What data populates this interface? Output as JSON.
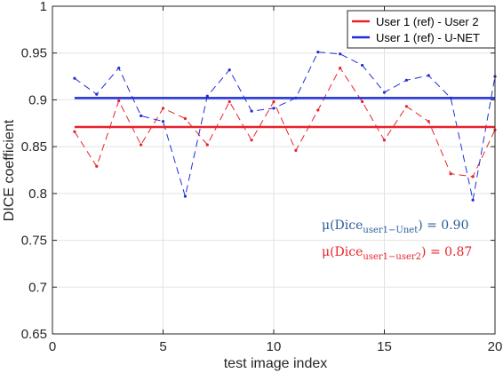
{
  "chart_data": {
    "type": "line",
    "xlabel": "test image index",
    "ylabel": "DICE coefficient",
    "xlim": [
      0,
      20
    ],
    "ylim": [
      0.65,
      1
    ],
    "xticks": [
      "0",
      "5",
      "10",
      "15",
      "20"
    ],
    "xtick_values": [
      0,
      5,
      10,
      15,
      20
    ],
    "yticks": [
      "0.65",
      "0.7",
      "0.75",
      "0.8",
      "0.85",
      "0.9",
      "0.95",
      "1"
    ],
    "ytick_values": [
      0.65,
      0.7,
      0.75,
      0.8,
      0.85,
      0.9,
      0.95,
      1
    ],
    "grid": true,
    "legend_position": "top-right",
    "legend": [
      {
        "label": "User 1 (ref) - User 2",
        "color": "#e8222a"
      },
      {
        "label": "User 1 (ref) - U-NET",
        "color": "#1f2fd6"
      }
    ],
    "x": [
      1,
      2,
      3,
      4,
      5,
      6,
      7,
      8,
      9,
      10,
      11,
      12,
      13,
      14,
      15,
      16,
      17,
      18,
      19,
      20
    ],
    "series": [
      {
        "name": "User 1 (ref) - User 2",
        "color": "#e8222a",
        "values": [
          0.866,
          0.829,
          0.899,
          0.852,
          0.891,
          0.88,
          0.852,
          0.898,
          0.857,
          0.898,
          0.846,
          0.889,
          0.934,
          0.898,
          0.857,
          0.893,
          0.877,
          0.821,
          0.818,
          0.868
        ],
        "mean": 0.871
      },
      {
        "name": "User 1 (ref) - U-NET",
        "color": "#1f2fd6",
        "values": [
          0.923,
          0.906,
          0.934,
          0.883,
          0.877,
          0.797,
          0.904,
          0.932,
          0.888,
          0.891,
          0.902,
          0.951,
          0.949,
          0.937,
          0.908,
          0.921,
          0.926,
          0.902,
          0.793,
          0.925
        ],
        "mean": 0.902
      }
    ],
    "annotations": [
      {
        "prefix": "μ(Dice",
        "subscript": "user1−Unet",
        "suffix": ") = 0.90",
        "color": "#2b5d9b"
      },
      {
        "prefix": "μ(Dice",
        "subscript": "user1−user2",
        "suffix": ") = 0.87",
        "color": "#e8222a"
      }
    ]
  }
}
